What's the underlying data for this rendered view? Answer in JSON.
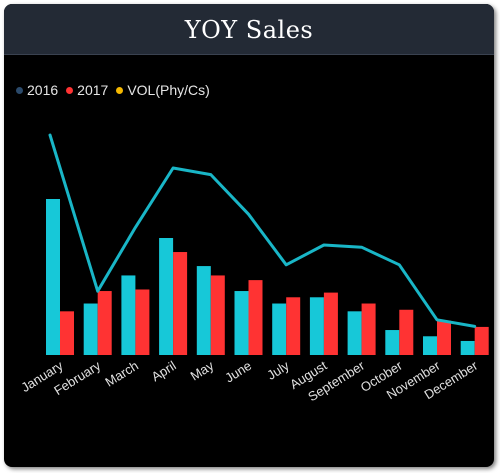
{
  "title": "YOY Sales",
  "legend": [
    {
      "label": "2016",
      "color": "#2b4a6b"
    },
    {
      "label": "2017",
      "color": "#ff3333"
    },
    {
      "label": "VOL(Phy/Cs)",
      "color": "#f5b800"
    }
  ],
  "colors": {
    "bar2016": "#17c8d8",
    "bar2017": "#ff3333",
    "line": "#19b6c7"
  },
  "chart_data": {
    "type": "bar",
    "categories": [
      "January",
      "February",
      "March",
      "April",
      "May",
      "June",
      "July",
      "August",
      "September",
      "October",
      "November",
      "December"
    ],
    "series": [
      {
        "name": "2016",
        "values": [
          100,
          33,
          51,
          75,
          57,
          41,
          33,
          37,
          28,
          16,
          12,
          9
        ]
      },
      {
        "name": "2017",
        "values": [
          28,
          41,
          42,
          66,
          51,
          48,
          37,
          40,
          33,
          29,
          22,
          18
        ]
      }
    ],
    "line_series": {
      "name": "VOL(Phy/Cs)",
      "values": [
        100,
        29,
        58,
        85,
        82,
        64,
        41,
        50,
        49,
        41,
        16,
        13
      ]
    },
    "ylim": [
      0,
      100
    ],
    "legend_position": "top-left",
    "grid": false,
    "y_axis_visible": false
  }
}
